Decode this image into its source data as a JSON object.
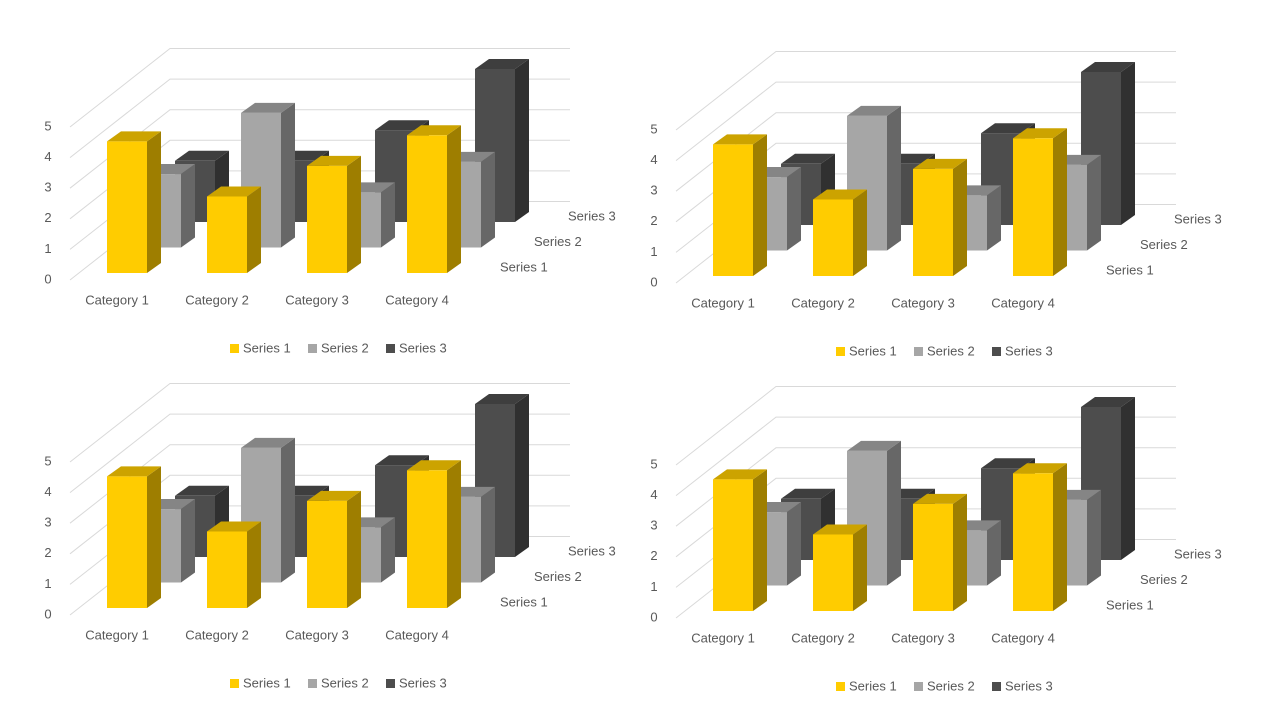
{
  "chart_data": [
    {
      "type": "bar3d",
      "categories": [
        "Category 1",
        "Category 2",
        "Category 3",
        "Category 4"
      ],
      "series": [
        {
          "name": "Series 1",
          "color": "#ffcc00",
          "values": [
            4.3,
            2.5,
            3.5,
            4.5
          ]
        },
        {
          "name": "Series 2",
          "color": "#a6a6a6",
          "values": [
            2.4,
            4.4,
            1.8,
            2.8
          ]
        },
        {
          "name": "Series 3",
          "color": "#4d4d4d",
          "values": [
            2,
            2,
            3,
            5
          ]
        }
      ],
      "ylim": [
        0,
        5
      ],
      "yticks": [
        0,
        1,
        2,
        3,
        4,
        5
      ],
      "grid": true,
      "legend": "bottom"
    },
    {
      "type": "bar3d",
      "categories": [
        "Category 1",
        "Category 2",
        "Category 3",
        "Category 4"
      ],
      "series": [
        {
          "name": "Series 1",
          "color": "#ffcc00",
          "values": [
            4.3,
            2.5,
            3.5,
            4.5
          ]
        },
        {
          "name": "Series 2",
          "color": "#a6a6a6",
          "values": [
            2.4,
            4.4,
            1.8,
            2.8
          ]
        },
        {
          "name": "Series 3",
          "color": "#4d4d4d",
          "values": [
            2,
            2,
            3,
            5
          ]
        }
      ],
      "ylim": [
        0,
        5
      ],
      "yticks": [
        0,
        1,
        2,
        3,
        4,
        5
      ],
      "grid": true,
      "legend": "bottom"
    },
    {
      "type": "bar3d",
      "categories": [
        "Category 1",
        "Category 2",
        "Category 3",
        "Category 4"
      ],
      "series": [
        {
          "name": "Series 1",
          "color": "#ffcc00",
          "values": [
            4.3,
            2.5,
            3.5,
            4.5
          ]
        },
        {
          "name": "Series 2",
          "color": "#a6a6a6",
          "values": [
            2.4,
            4.4,
            1.8,
            2.8
          ]
        },
        {
          "name": "Series 3",
          "color": "#4d4d4d",
          "values": [
            2,
            2,
            3,
            5
          ]
        }
      ],
      "ylim": [
        0,
        5
      ],
      "yticks": [
        0,
        1,
        2,
        3,
        4,
        5
      ],
      "grid": true,
      "legend": "bottom"
    },
    {
      "type": "bar3d",
      "categories": [
        "Category 1",
        "Category 2",
        "Category 3",
        "Category 4"
      ],
      "series": [
        {
          "name": "Series 1",
          "color": "#ffcc00",
          "values": [
            4.3,
            2.5,
            3.5,
            4.5
          ]
        },
        {
          "name": "Series 2",
          "color": "#a6a6a6",
          "values": [
            2.4,
            4.4,
            1.8,
            2.8
          ]
        },
        {
          "name": "Series 3",
          "color": "#4d4d4d",
          "values": [
            2,
            2,
            3,
            5
          ]
        }
      ],
      "ylim": [
        0,
        5
      ],
      "yticks": [
        0,
        1,
        2,
        3,
        4,
        5
      ],
      "grid": true,
      "legend": "bottom"
    }
  ]
}
